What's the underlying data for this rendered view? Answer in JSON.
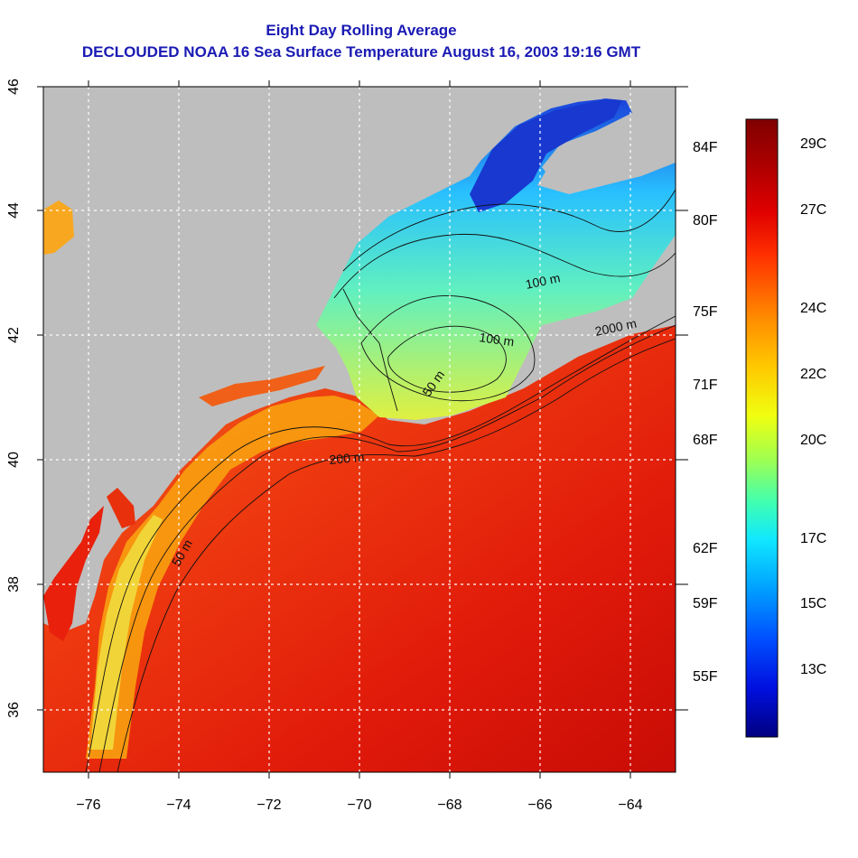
{
  "title": "Eight Day Rolling Average",
  "subtitle": "DECLOUDED NOAA 16 Sea Surface Temperature August 16, 2003 19:16 GMT",
  "map": {
    "x_ticks": [
      "−76",
      "−74",
      "−72",
      "−70",
      "−68",
      "−66",
      "−64"
    ],
    "y_ticks": [
      "36",
      "38",
      "40",
      "42",
      "44",
      "46"
    ],
    "contour_labels": [
      "100 m",
      "2000 m",
      "100 m",
      "50 m",
      "200 m",
      "50 m"
    ]
  },
  "colorbar": {
    "fahrenheit_labels": [
      "84F",
      "80F",
      "75F",
      "71F",
      "68F",
      "62F",
      "59F",
      "55F"
    ],
    "celsius_labels": [
      "29C",
      "27C",
      "24C",
      "22C",
      "20C",
      "17C",
      "15C",
      "13C"
    ],
    "colors": [
      "#800000",
      "#cc0000",
      "#ff3300",
      "#ff8800",
      "#ffd200",
      "#e8ff20",
      "#80ff60",
      "#20ffd0",
      "#00b0ff",
      "#0040ff",
      "#0000c0",
      "#00007a"
    ]
  },
  "colors": {
    "title": "#1a1ab4",
    "land": "#bebebe",
    "warm_ocean": "#e8200c",
    "cool_water": "#1540d8"
  }
}
